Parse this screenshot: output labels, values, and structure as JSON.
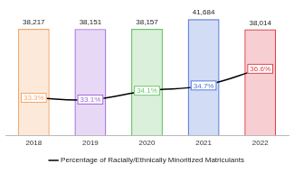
{
  "chart_data": {
    "type": "bar",
    "categories": [
      "2018",
      "2019",
      "2020",
      "2021",
      "2022"
    ],
    "series": [
      {
        "type": "bar",
        "colors": [
          "#f5a66a",
          "#a066d8",
          "#6cc46c",
          "#4a72d6",
          "#e0404a"
        ],
        "values": [
          38217,
          38151,
          38157,
          41684,
          38014
        ],
        "value_labels": [
          "38,217",
          "38,151",
          "38,157",
          "41,684",
          "38,014"
        ]
      },
      {
        "name": "Percentage of Racially/Ethnically Minoritized Matriculants",
        "type": "line",
        "color": "#000000",
        "axis": "y2",
        "values": [
          33.3,
          33.1,
          34.1,
          34.7,
          36.6
        ],
        "value_labels": [
          "33.3%",
          "33.1%",
          "34.1%",
          "34.7%",
          "36.6%"
        ]
      }
    ],
    "ylim": [
      0,
      44000
    ],
    "y2lim": [
      29,
      43
    ],
    "data_labels": true,
    "legend": "bottom",
    "tick_labels": "x",
    "grid": false
  }
}
